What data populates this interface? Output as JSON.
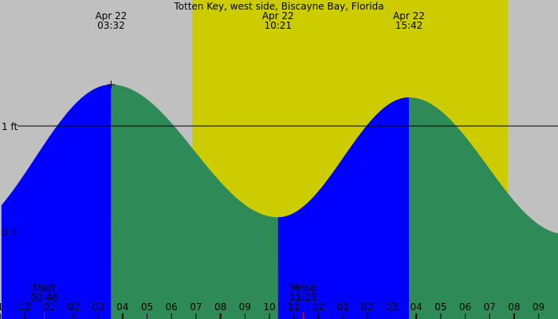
{
  "chart_data": {
    "type": "area",
    "title": "Totten Key, west side, Biscayne Bay, Florida",
    "y_unit": "ft",
    "y_ticks": [
      {
        "value": 1,
        "label": "1 ft"
      },
      {
        "value": 0,
        "label": "0 ft"
      }
    ],
    "ylim": [
      -0.1,
      2.2
    ],
    "xlim_hours": [
      -0.95,
      21.8
    ],
    "extrema": [
      {
        "type": "low",
        "hour": -2.7,
        "height": 0.0
      },
      {
        "type": "high",
        "hour": 3.53,
        "height": 1.39,
        "date": "Apr 22",
        "time": "03:32"
      },
      {
        "type": "low",
        "hour": 10.35,
        "height": 0.14,
        "date": "Apr 22",
        "time": "10:21"
      },
      {
        "type": "high",
        "hour": 15.7,
        "height": 1.27,
        "date": "Apr 22",
        "time": "15:42"
      },
      {
        "type": "low",
        "hour": 22.1,
        "height": -0.02
      }
    ],
    "daylight_hours": [
      6.84,
      19.74
    ],
    "moon_events": [
      {
        "label": "Mset",
        "time": "00:48",
        "hour": 0.8
      },
      {
        "label": "Mrise",
        "time": "11:23",
        "hour": 11.38
      }
    ],
    "hour_labels": [
      {
        "hour": -1,
        "label": "1"
      },
      {
        "hour": 0,
        "label": "12"
      },
      {
        "hour": 1,
        "label": "01"
      },
      {
        "hour": 2,
        "label": "02"
      },
      {
        "hour": 3,
        "label": "03"
      },
      {
        "hour": 4,
        "label": "04"
      },
      {
        "hour": 5,
        "label": "05"
      },
      {
        "hour": 6,
        "label": "06"
      },
      {
        "hour": 7,
        "label": "07"
      },
      {
        "hour": 8,
        "label": "08"
      },
      {
        "hour": 9,
        "label": "09"
      },
      {
        "hour": 10,
        "label": "10"
      },
      {
        "hour": 11,
        "label": "11"
      },
      {
        "hour": 12,
        "label": "12"
      },
      {
        "hour": 13,
        "label": "01"
      },
      {
        "hour": 14,
        "label": "02"
      },
      {
        "hour": 15,
        "label": "03"
      },
      {
        "hour": 16,
        "label": "04"
      },
      {
        "hour": 17,
        "label": "05"
      },
      {
        "hour": 18,
        "label": "06"
      },
      {
        "hour": 19,
        "label": "07"
      },
      {
        "hour": 20,
        "label": "08"
      },
      {
        "hour": 21,
        "label": "09"
      }
    ],
    "colors": {
      "night": "#c0c0c0",
      "day": "#cccc00",
      "rising": "#0000ff",
      "falling": "#2e8b57",
      "moon_tick": "#ff0000"
    }
  }
}
